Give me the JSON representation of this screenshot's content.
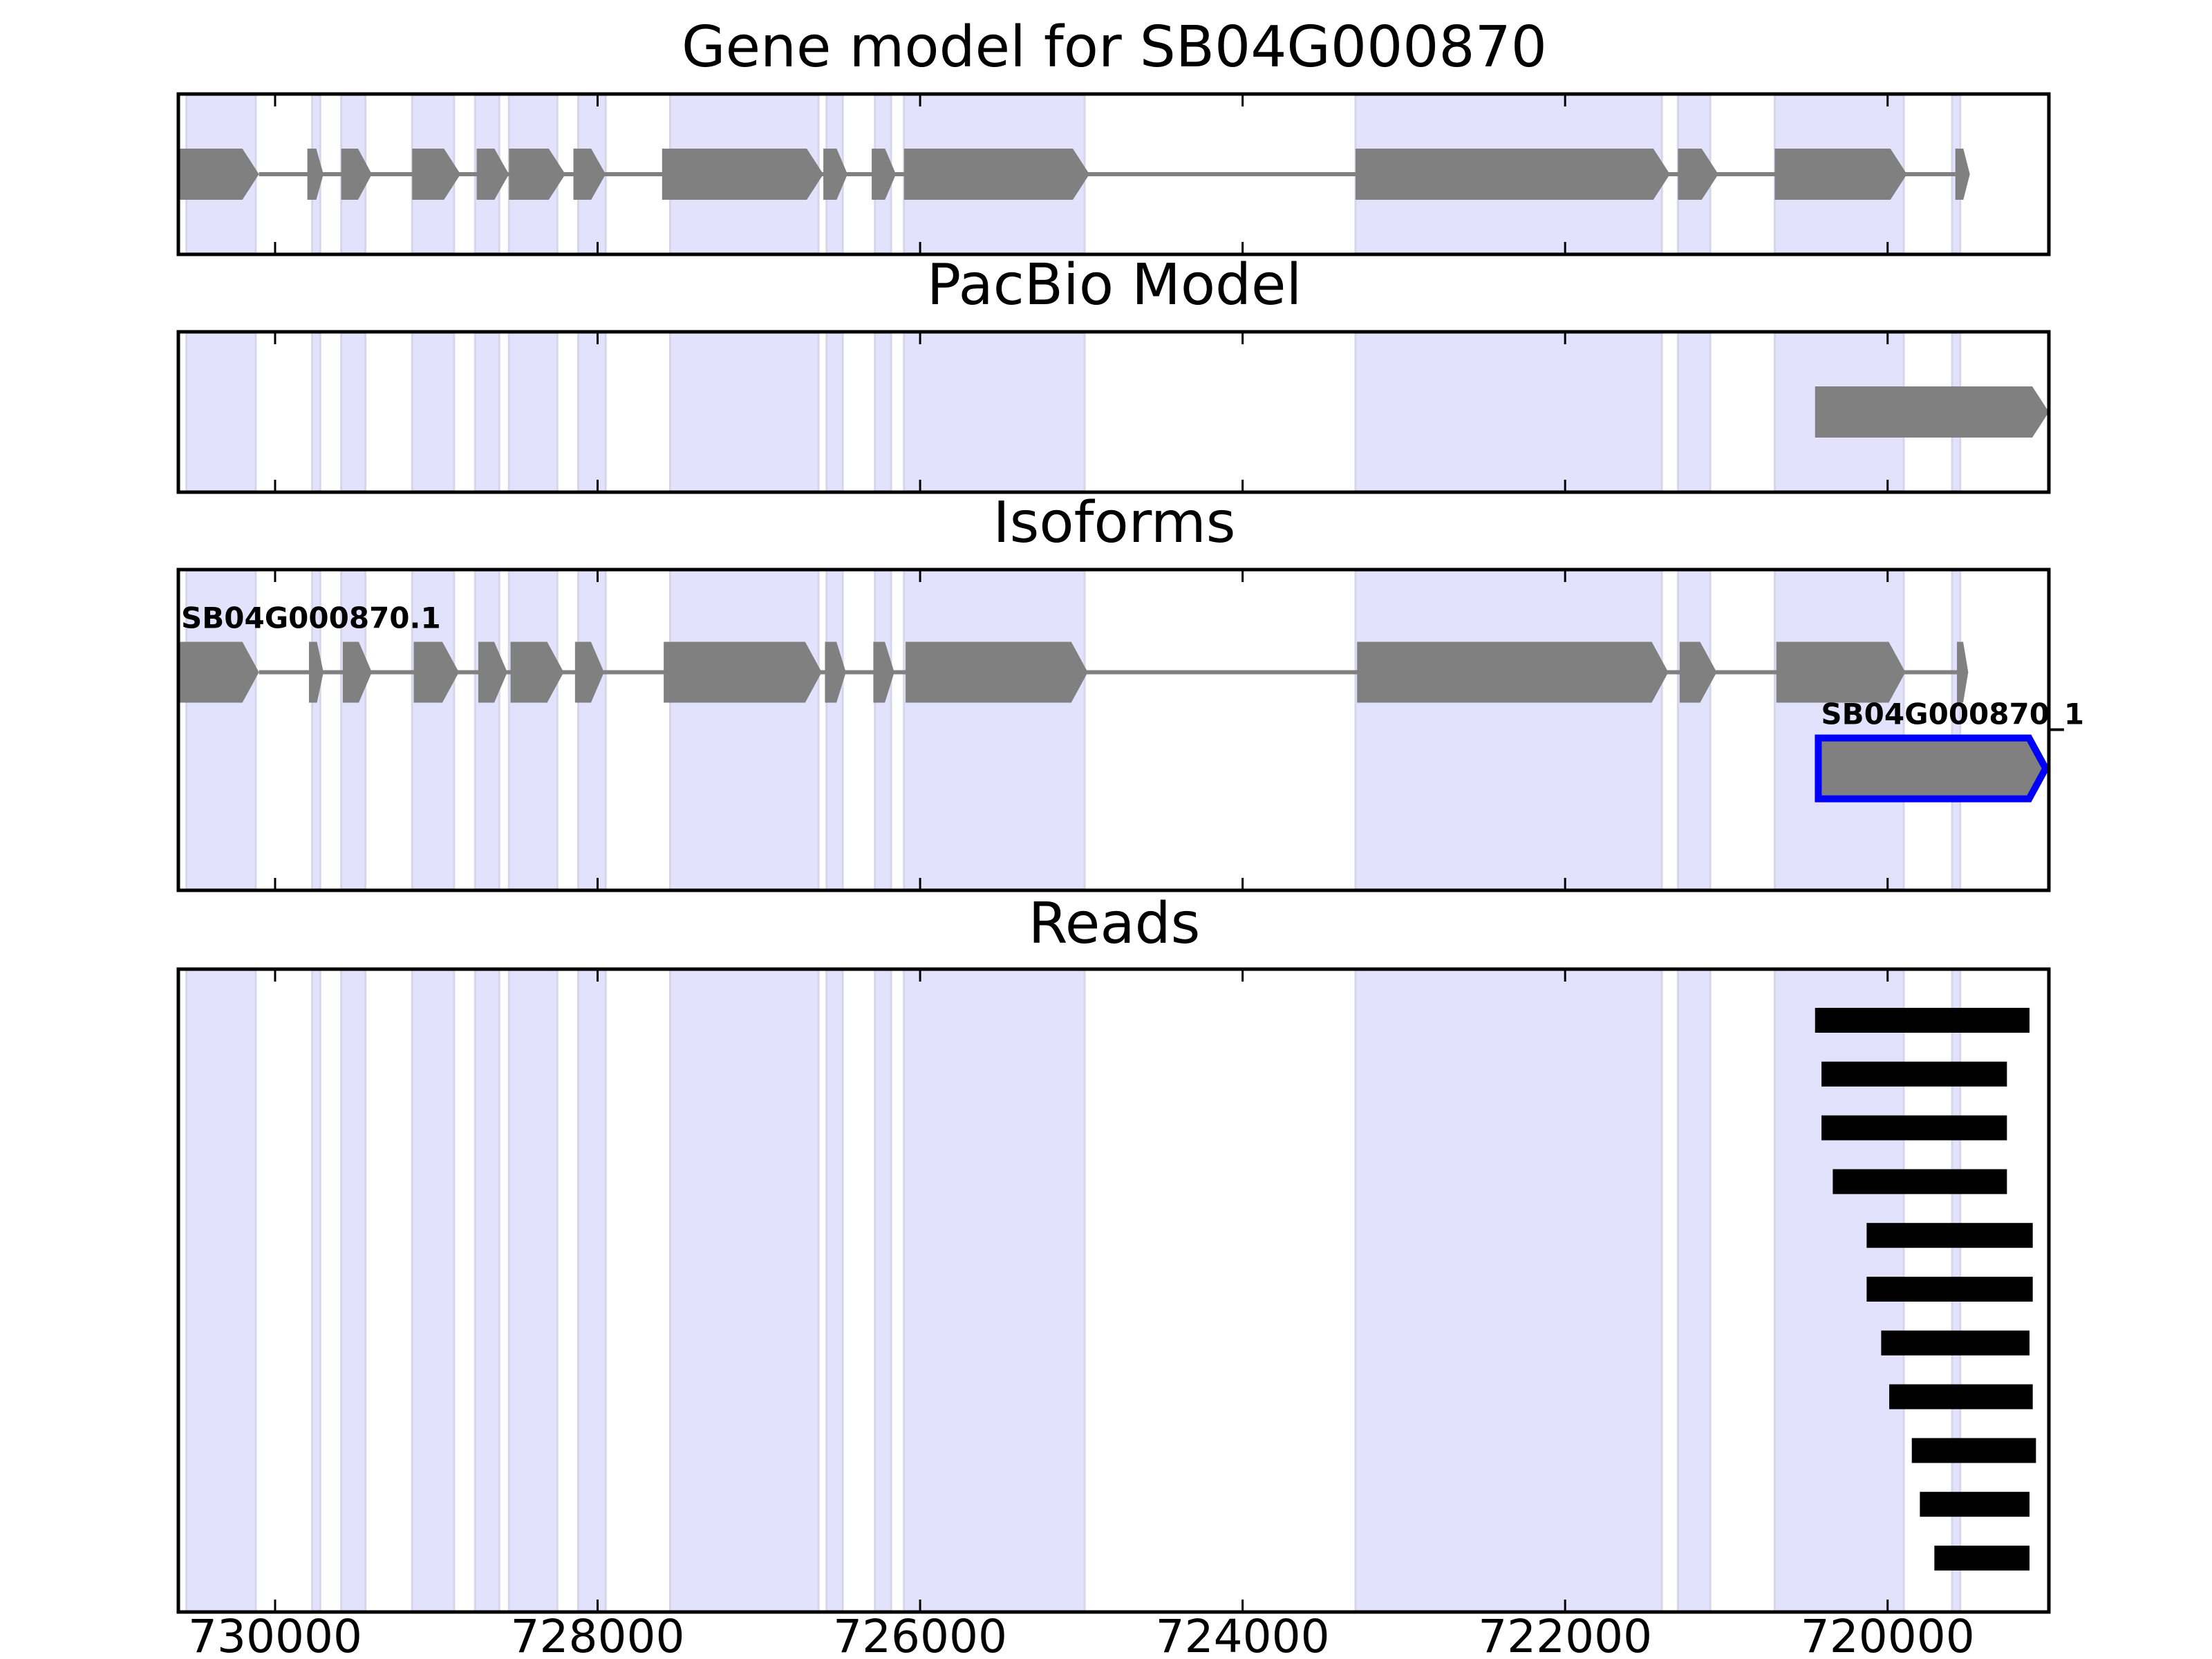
{
  "chart_data": {
    "type": "gene-track",
    "xlim": [
      730600,
      719000
    ],
    "x_reversed": true,
    "x_ticks": [
      730000,
      728000,
      726000,
      724000,
      722000,
      720000
    ],
    "highlight_regions": [
      [
        730550,
        730120
      ],
      [
        729770,
        729720
      ],
      [
        729590,
        729440
      ],
      [
        729150,
        728890
      ],
      [
        728760,
        728610
      ],
      [
        728550,
        728250
      ],
      [
        728120,
        727950
      ],
      [
        727550,
        726630
      ],
      [
        726580,
        726480
      ],
      [
        726280,
        726180
      ],
      [
        726100,
        724980
      ],
      [
        723300,
        721400
      ],
      [
        721300,
        721100
      ],
      [
        720700,
        719900
      ],
      [
        719600,
        719550
      ]
    ],
    "panels": [
      {
        "id": "gene-model",
        "title": "Gene model for SB04G000870",
        "models": [
          {
            "label": "",
            "strand": "-",
            "row": 0.5,
            "exons": [
              [
                730600,
                730100
              ],
              [
                729800,
                729700
              ],
              [
                729590,
                729400
              ],
              [
                729150,
                728850
              ],
              [
                728750,
                728550
              ],
              [
                728550,
                728200
              ],
              [
                728150,
                727950
              ],
              [
                727600,
                726600
              ],
              [
                726600,
                726450
              ],
              [
                726300,
                726150
              ],
              [
                726100,
                724950
              ],
              [
                723300,
                721350
              ],
              [
                721300,
                721050
              ],
              [
                720700,
                719880
              ],
              [
                719580,
                719490
              ]
            ]
          }
        ]
      },
      {
        "id": "pacbio-model",
        "title": "PacBio Model",
        "models": [
          {
            "label": "",
            "strand": "-",
            "row": 0.5,
            "exons": [
              [
                720450,
                719000
              ]
            ]
          }
        ]
      },
      {
        "id": "isoforms",
        "title": "Isoforms",
        "models": [
          {
            "label": "SB04G000870.1",
            "strand": "-",
            "row": 0.32,
            "exons": [
              [
                730600,
                730100
              ],
              [
                729790,
                729700
              ],
              [
                729580,
                729400
              ],
              [
                729140,
                728860
              ],
              [
                728740,
                728560
              ],
              [
                728540,
                728210
              ],
              [
                728140,
                727960
              ],
              [
                727590,
                726610
              ],
              [
                726590,
                726460
              ],
              [
                726290,
                726160
              ],
              [
                726090,
                724960
              ],
              [
                723290,
                721360
              ],
              [
                721290,
                721060
              ],
              [
                720690,
                719890
              ],
              [
                719570,
                719500
              ]
            ]
          },
          {
            "label": "SB04G000870_1",
            "strand": "-",
            "row": 0.62,
            "selected": true,
            "exons": [
              [
                720430,
                719020
              ]
            ]
          }
        ]
      },
      {
        "id": "reads",
        "title": "Reads",
        "reads": [
          [
            720450,
            719120
          ],
          [
            720410,
            719260
          ],
          [
            720410,
            719260
          ],
          [
            720340,
            719260
          ],
          [
            720130,
            719100
          ],
          [
            720130,
            719100
          ],
          [
            720040,
            719120
          ],
          [
            719990,
            719100
          ],
          [
            719850,
            719080
          ],
          [
            719800,
            719120
          ],
          [
            719710,
            719120
          ]
        ]
      }
    ],
    "colors": {
      "exon": "#808080",
      "intron": "#808080",
      "highlight": "#e2e2fc",
      "highlight_edge": "#d6d6ea",
      "selected_edge": "#0000ff",
      "read": "#000000"
    }
  }
}
